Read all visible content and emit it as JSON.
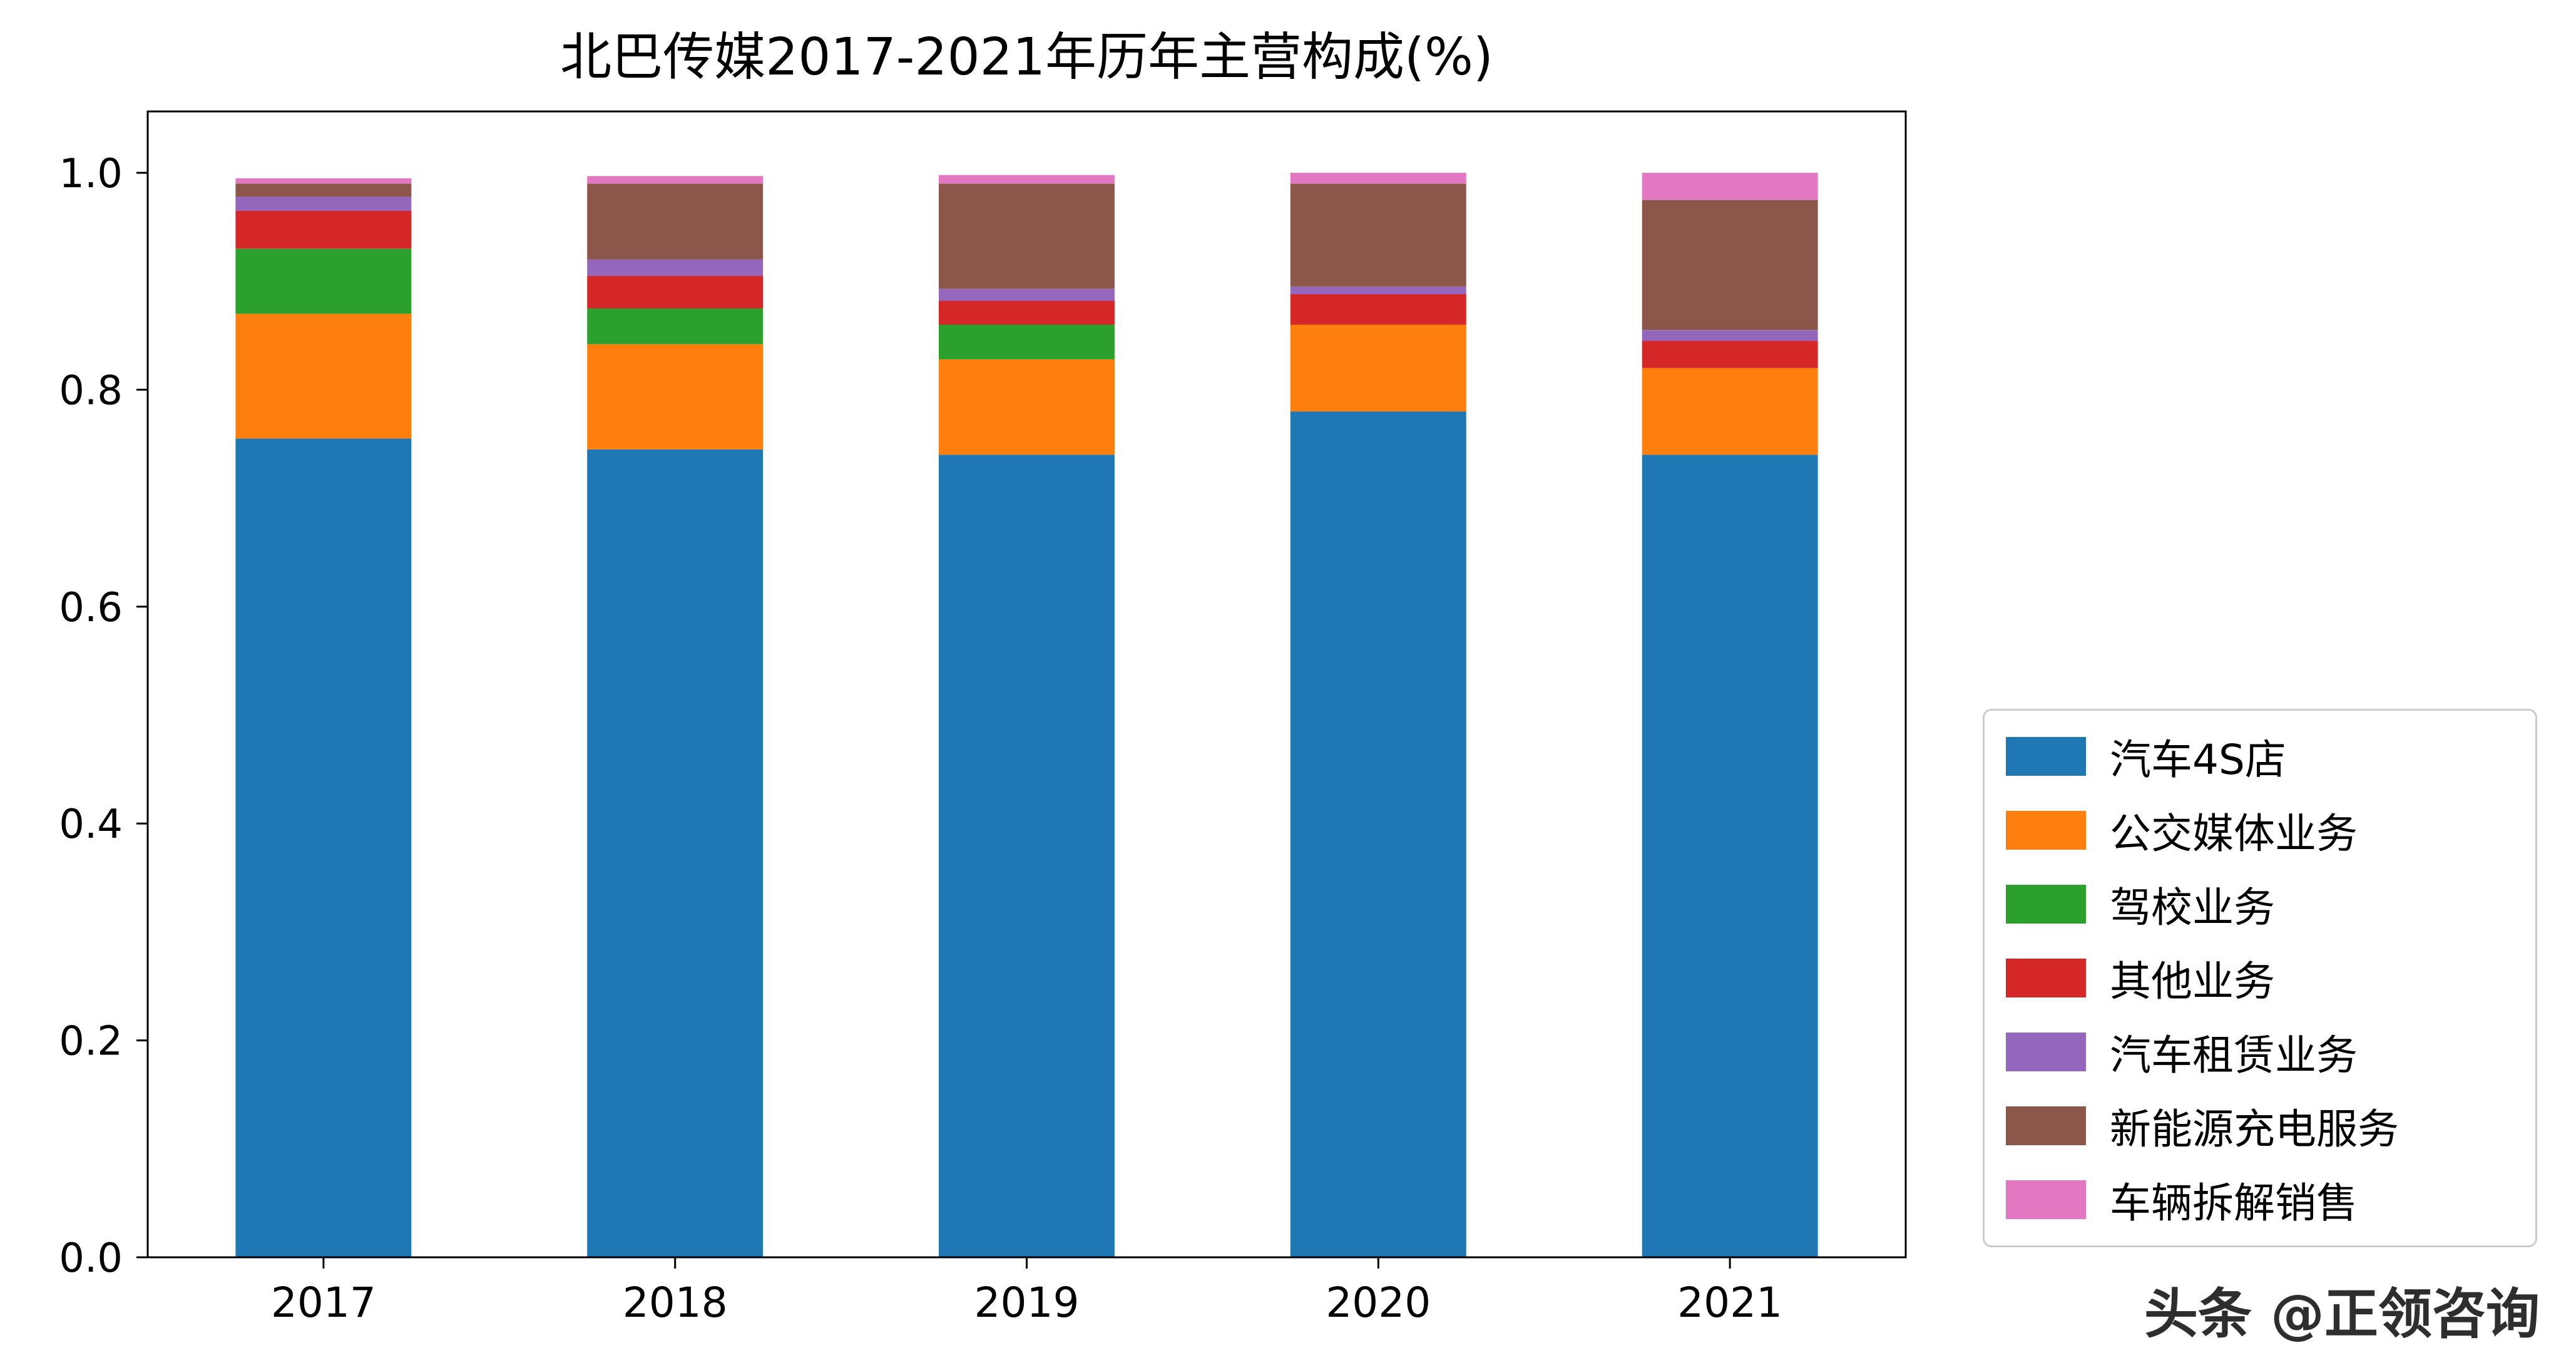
{
  "title": "北巴传媒2017-2021年历年主营构成(%)",
  "watermark": "头条 @正领咨询",
  "colors": {
    "axis": "#000000",
    "legend_border": "#cccccc",
    "background": "#ffffff"
  },
  "chart_data": {
    "type": "bar",
    "stacked": true,
    "title": "北巴传媒2017-2021年历年主营构成(%)",
    "xlabel": "",
    "ylabel": "",
    "categories": [
      "2017",
      "2018",
      "2019",
      "2020",
      "2021"
    ],
    "series": [
      {
        "name": "汽车4S店",
        "color": "#1f77b4",
        "values": [
          0.755,
          0.745,
          0.74,
          0.78,
          0.74
        ]
      },
      {
        "name": "公交媒体业务",
        "color": "#ff7f0e",
        "values": [
          0.115,
          0.097,
          0.088,
          0.08,
          0.08
        ]
      },
      {
        "name": "驾校业务",
        "color": "#2ca02c",
        "values": [
          0.06,
          0.033,
          0.032,
          0.0,
          0.0
        ]
      },
      {
        "name": "其他业务",
        "color": "#d62728",
        "values": [
          0.035,
          0.03,
          0.022,
          0.028,
          0.025
        ]
      },
      {
        "name": "汽车租赁业务",
        "color": "#9467bd",
        "values": [
          0.013,
          0.015,
          0.011,
          0.007,
          0.01
        ]
      },
      {
        "name": "新能源充电服务",
        "color": "#8c564b",
        "values": [
          0.012,
          0.07,
          0.097,
          0.095,
          0.12
        ]
      },
      {
        "name": "车辆拆解销售",
        "color": "#e377c2",
        "values": [
          0.005,
          0.007,
          0.008,
          0.01,
          0.025
        ]
      }
    ],
    "ylim": [
      0.0,
      1.0566
    ],
    "yticks": [
      0.0,
      0.2,
      0.4,
      0.6,
      0.8,
      1.0
    ],
    "grid": false,
    "legend_position": "right-outside-lower"
  }
}
